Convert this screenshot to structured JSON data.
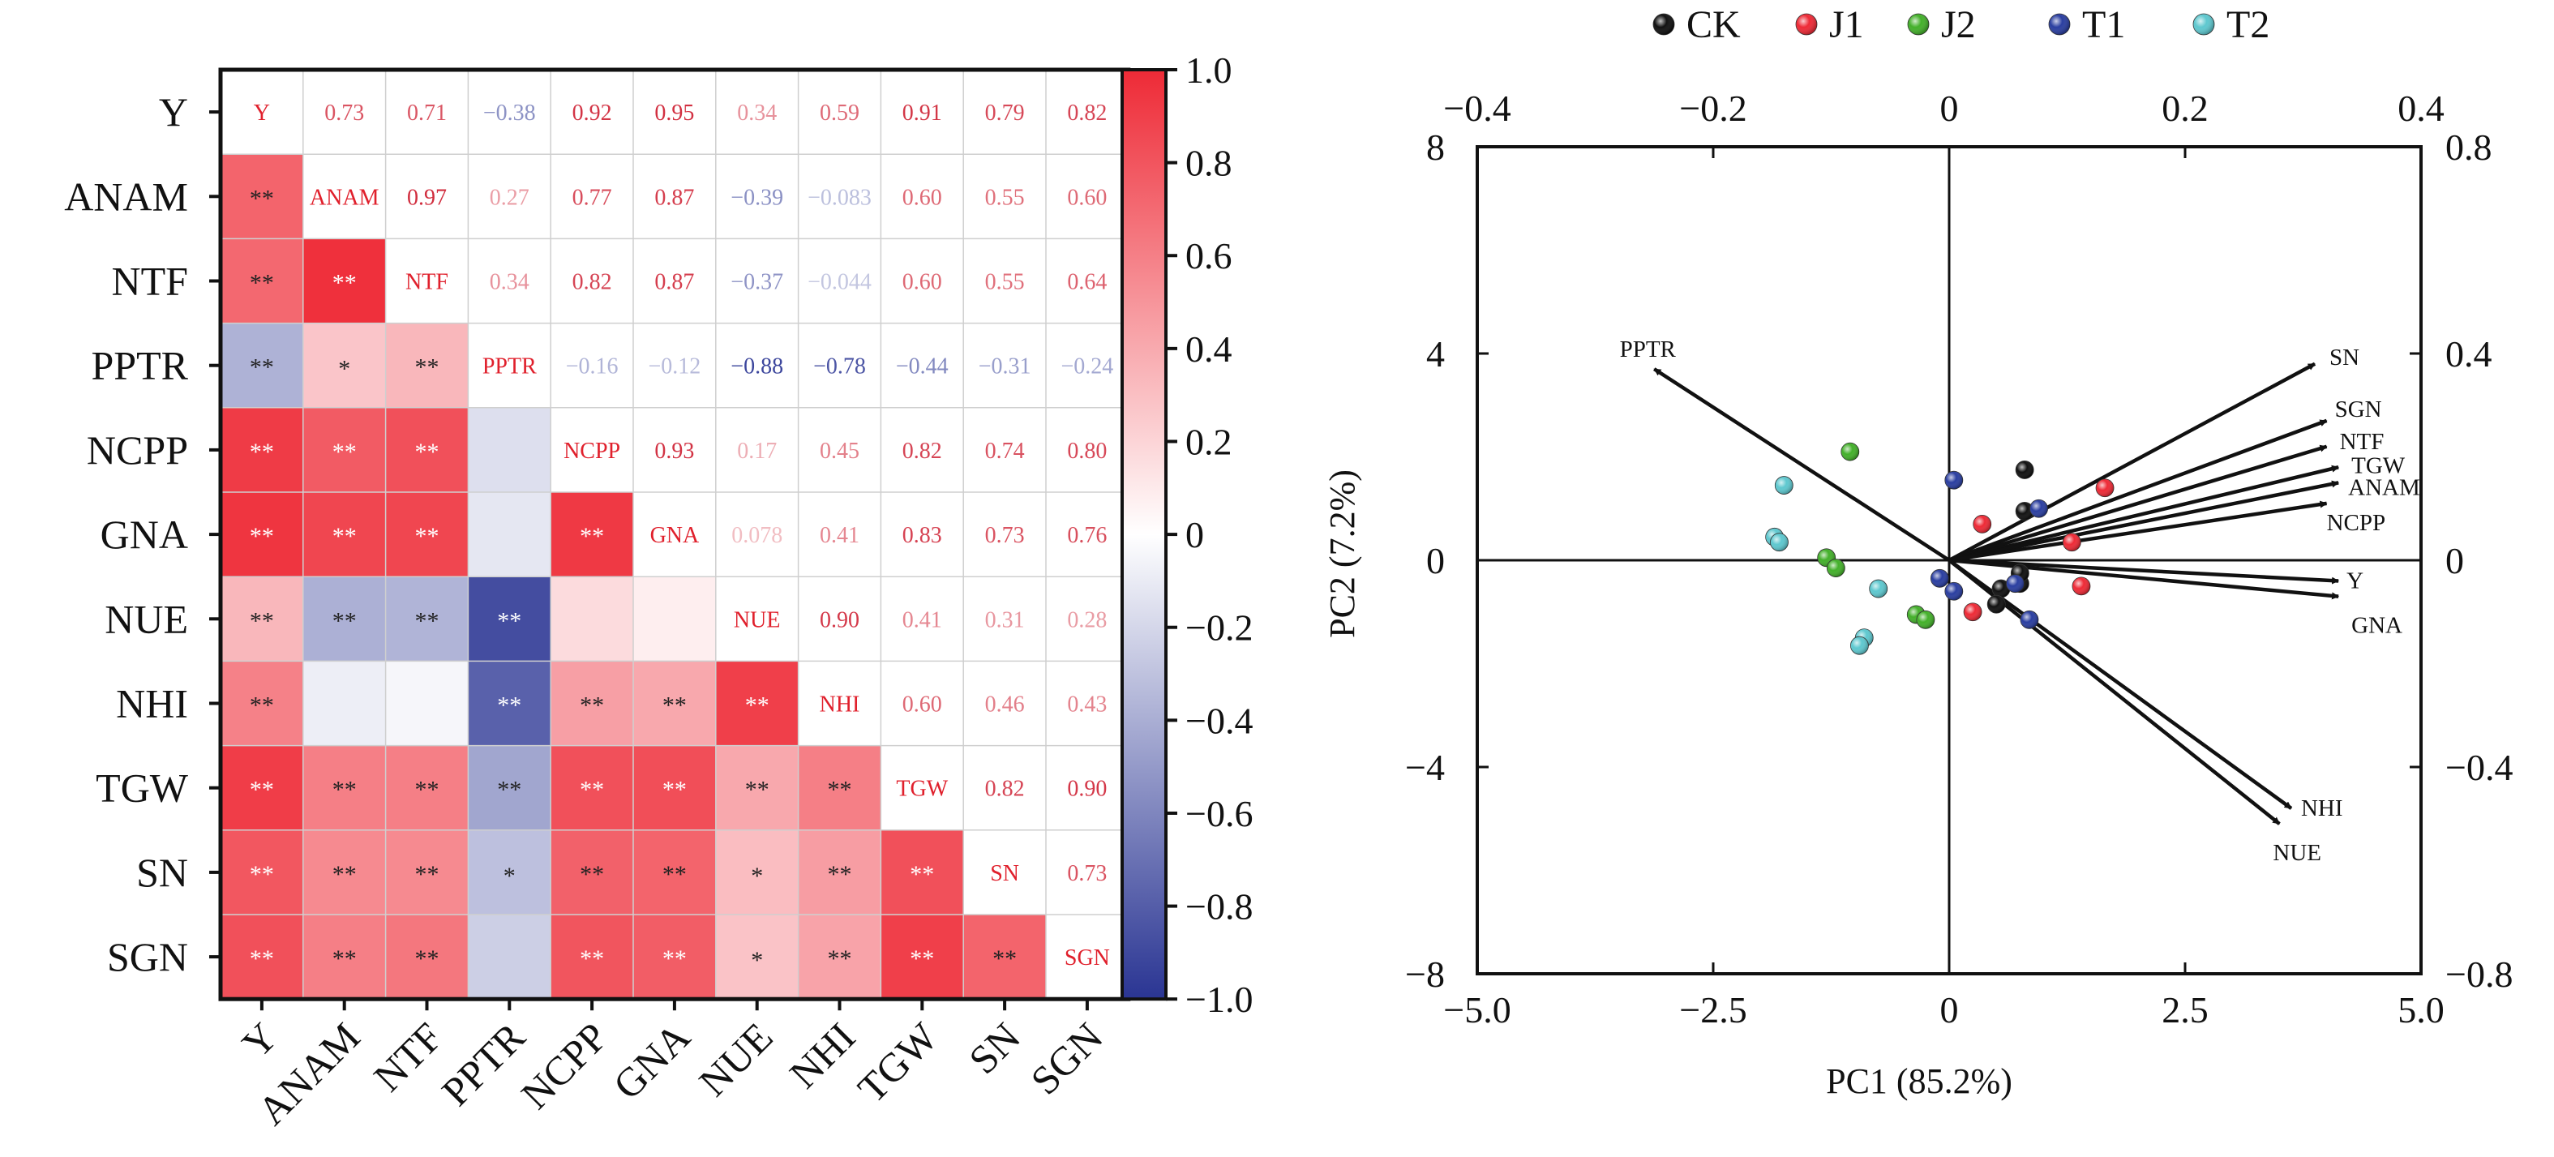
{
  "chart_data": [
    {
      "type": "heatmap",
      "title": "",
      "variables": [
        "Y",
        "ANAM",
        "NTF",
        "PPTR",
        "NCPP",
        "GNA",
        "NUE",
        "NHI",
        "TGW",
        "SN",
        "SGN"
      ],
      "upper_labels": [
        [
          "Y",
          "0.73",
          "0.71",
          "−0.38",
          "0.92",
          "0.95",
          "0.34",
          "0.59",
          "0.91",
          "0.79",
          "0.82"
        ],
        [
          "",
          "ANAM",
          "0.97",
          "0.27",
          "0.77",
          "0.87",
          "−0.39",
          "−0.083",
          "0.60",
          "0.55",
          "0.60"
        ],
        [
          "",
          "",
          "NTF",
          "0.34",
          "0.82",
          "0.87",
          "−0.37",
          "−0.044",
          "0.60",
          "0.55",
          "0.64"
        ],
        [
          "",
          "",
          "",
          "PPTR",
          "−0.16",
          "−0.12",
          "−0.88",
          "−0.78",
          "−0.44",
          "−0.31",
          "−0.24"
        ],
        [
          "",
          "",
          "",
          "",
          "NCPP",
          "0.93",
          "0.17",
          "0.45",
          "0.82",
          "0.74",
          "0.80"
        ],
        [
          "",
          "",
          "",
          "",
          "",
          "GNA",
          "0.078",
          "0.41",
          "0.83",
          "0.73",
          "0.76"
        ],
        [
          "",
          "",
          "",
          "",
          "",
          "",
          "NUE",
          "0.90",
          "0.41",
          "0.31",
          "0.28"
        ],
        [
          "",
          "",
          "",
          "",
          "",
          "",
          "",
          "NHI",
          "0.60",
          "0.46",
          "0.43"
        ],
        [
          "",
          "",
          "",
          "",
          "",
          "",
          "",
          "",
          "TGW",
          "0.82",
          "0.90"
        ],
        [
          "",
          "",
          "",
          "",
          "",
          "",
          "",
          "",
          "",
          "SN",
          "0.73"
        ],
        [
          "",
          "",
          "",
          "",
          "",
          "",
          "",
          "",
          "",
          "",
          "SGN"
        ]
      ],
      "significance": [
        [
          "",
          "",
          "",
          "",
          "",
          "",
          "",
          "",
          "",
          "",
          ""
        ],
        [
          "**",
          "",
          "",
          "",
          "",
          "",
          "",
          "",
          "",
          "",
          ""
        ],
        [
          "**",
          "**",
          "",
          "",
          "",
          "",
          "",
          "",
          "",
          "",
          ""
        ],
        [
          "**",
          "*",
          "**",
          "",
          "",
          "",
          "",
          "",
          "",
          "",
          ""
        ],
        [
          "**",
          "**",
          "**",
          "",
          "",
          "",
          "",
          "",
          "",
          "",
          ""
        ],
        [
          "**",
          "**",
          "**",
          "",
          "**",
          "",
          "",
          "",
          "",
          "",
          ""
        ],
        [
          "**",
          "**",
          "**",
          "**",
          "",
          "",
          "",
          "",
          "",
          "",
          ""
        ],
        [
          "**",
          "",
          "",
          "**",
          "**",
          "**",
          "**",
          "",
          "",
          "",
          ""
        ],
        [
          "**",
          "**",
          "**",
          "**",
          "**",
          "**",
          "**",
          "**",
          "",
          "",
          ""
        ],
        [
          "**",
          "**",
          "**",
          "*",
          "**",
          "**",
          "*",
          "**",
          "**",
          "",
          ""
        ],
        [
          "**",
          "**",
          "**",
          "",
          "**",
          "**",
          "*",
          "**",
          "**",
          "**",
          ""
        ]
      ],
      "colorbar": {
        "range": [
          -1.0,
          1.0
        ],
        "ticks": [
          "1.0",
          "0.8",
          "0.6",
          "0.4",
          "0.2",
          "0",
          "−0.2",
          "−0.4",
          "−0.6",
          "−0.8",
          "−1.0"
        ],
        "colors": {
          "negative": "#2a3593",
          "zero": "#ffffff",
          "positive": "#ee2a36"
        }
      }
    },
    {
      "type": "scatter",
      "title": "",
      "xlabel": "PC1 (85.2%)",
      "ylabel": "PC2 (7.2%)",
      "xlim": [
        -5.0,
        5.0
      ],
      "ylim": [
        -8,
        8
      ],
      "x_ticks": [
        "−5.0",
        "−2.5",
        "0",
        "2.5",
        "5.0"
      ],
      "y_ticks": [
        "8",
        "4",
        "0",
        "−4",
        "−8"
      ],
      "x2_lim": [
        -0.4,
        0.4
      ],
      "x2_ticks": [
        "−0.4",
        "−0.2",
        "0",
        "0.2",
        "0.4"
      ],
      "y2_lim": [
        -0.8,
        0.8
      ],
      "y2_ticks": [
        "0.8",
        "0.4",
        "0",
        "−0.4",
        "−0.8"
      ],
      "legend_position": "top",
      "series": [
        {
          "name": "CK",
          "color": "#111111",
          "points": [
            [
              0.8,
              1.75
            ],
            [
              0.8,
              0.95
            ],
            [
              0.55,
              -0.55
            ],
            [
              0.5,
              -0.85
            ],
            [
              0.75,
              -0.45
            ],
            [
              0.75,
              -0.25
            ]
          ]
        },
        {
          "name": "J1",
          "color": "#ee2a36",
          "points": [
            [
              1.65,
              1.4
            ],
            [
              0.35,
              0.7
            ],
            [
              1.3,
              0.35
            ],
            [
              1.4,
              -0.5
            ],
            [
              0.25,
              -1.0
            ]
          ]
        },
        {
          "name": "J2",
          "color": "#43b02a",
          "points": [
            [
              -1.05,
              2.1
            ],
            [
              -1.3,
              0.05
            ],
            [
              -1.2,
              -0.15
            ],
            [
              -0.35,
              -1.05
            ],
            [
              -0.25,
              -1.15
            ]
          ]
        },
        {
          "name": "T1",
          "color": "#2a3ea0",
          "points": [
            [
              0.05,
              1.55
            ],
            [
              0.95,
              1.0
            ],
            [
              -0.1,
              -0.35
            ],
            [
              0.05,
              -0.6
            ],
            [
              0.7,
              -0.45
            ],
            [
              0.85,
              -1.15
            ]
          ]
        },
        {
          "name": "T2",
          "color": "#5ec8cf",
          "points": [
            [
              -1.75,
              1.45
            ],
            [
              -1.85,
              0.45
            ],
            [
              -1.8,
              0.35
            ],
            [
              -0.75,
              -0.55
            ],
            [
              -0.9,
              -1.5
            ],
            [
              -0.95,
              -1.65
            ]
          ]
        }
      ],
      "loadings": [
        {
          "name": "PPTR",
          "x": -0.25,
          "y": 0.37
        },
        {
          "name": "SN",
          "x": 0.31,
          "y": 0.38
        },
        {
          "name": "SGN",
          "x": 0.32,
          "y": 0.27
        },
        {
          "name": "NTF",
          "x": 0.32,
          "y": 0.22
        },
        {
          "name": "TGW",
          "x": 0.33,
          "y": 0.18
        },
        {
          "name": "ANAM",
          "x": 0.33,
          "y": 0.15
        },
        {
          "name": "NCPP",
          "x": 0.32,
          "y": 0.11
        },
        {
          "name": "Y",
          "x": 0.33,
          "y": -0.04
        },
        {
          "name": "GNA",
          "x": 0.33,
          "y": -0.07
        },
        {
          "name": "NHI",
          "x": 0.29,
          "y": -0.48
        },
        {
          "name": "NUE",
          "x": 0.28,
          "y": -0.51
        }
      ]
    }
  ]
}
